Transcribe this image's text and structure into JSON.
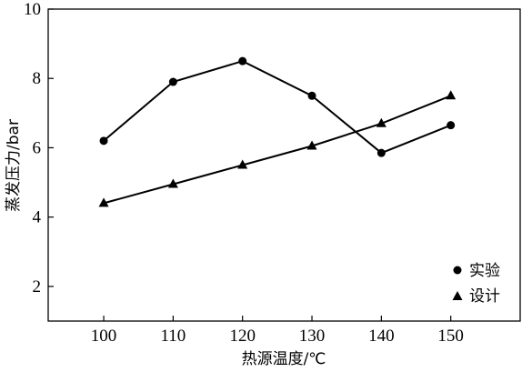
{
  "chart_data": {
    "type": "line",
    "title": "",
    "xlabel": "热源温度/℃",
    "ylabel": "蒸发压力/bar",
    "xlim": [
      92,
      160
    ],
    "ylim": [
      1,
      10
    ],
    "x_ticks": [
      100,
      110,
      120,
      130,
      140,
      150
    ],
    "y_ticks": [
      2,
      4,
      6,
      8,
      10
    ],
    "grid": false,
    "legend_position": "bottom-right",
    "series": [
      {
        "name": "实验",
        "marker": "circle",
        "color": "#000000",
        "x": [
          100,
          110,
          120,
          130,
          140,
          150
        ],
        "y": [
          6.2,
          7.9,
          8.5,
          7.5,
          5.85,
          6.65
        ]
      },
      {
        "name": "设计",
        "marker": "triangle",
        "color": "#000000",
        "x": [
          100,
          110,
          120,
          130,
          140,
          150
        ],
        "y": [
          4.4,
          4.95,
          5.5,
          6.05,
          6.7,
          7.5
        ]
      }
    ]
  }
}
